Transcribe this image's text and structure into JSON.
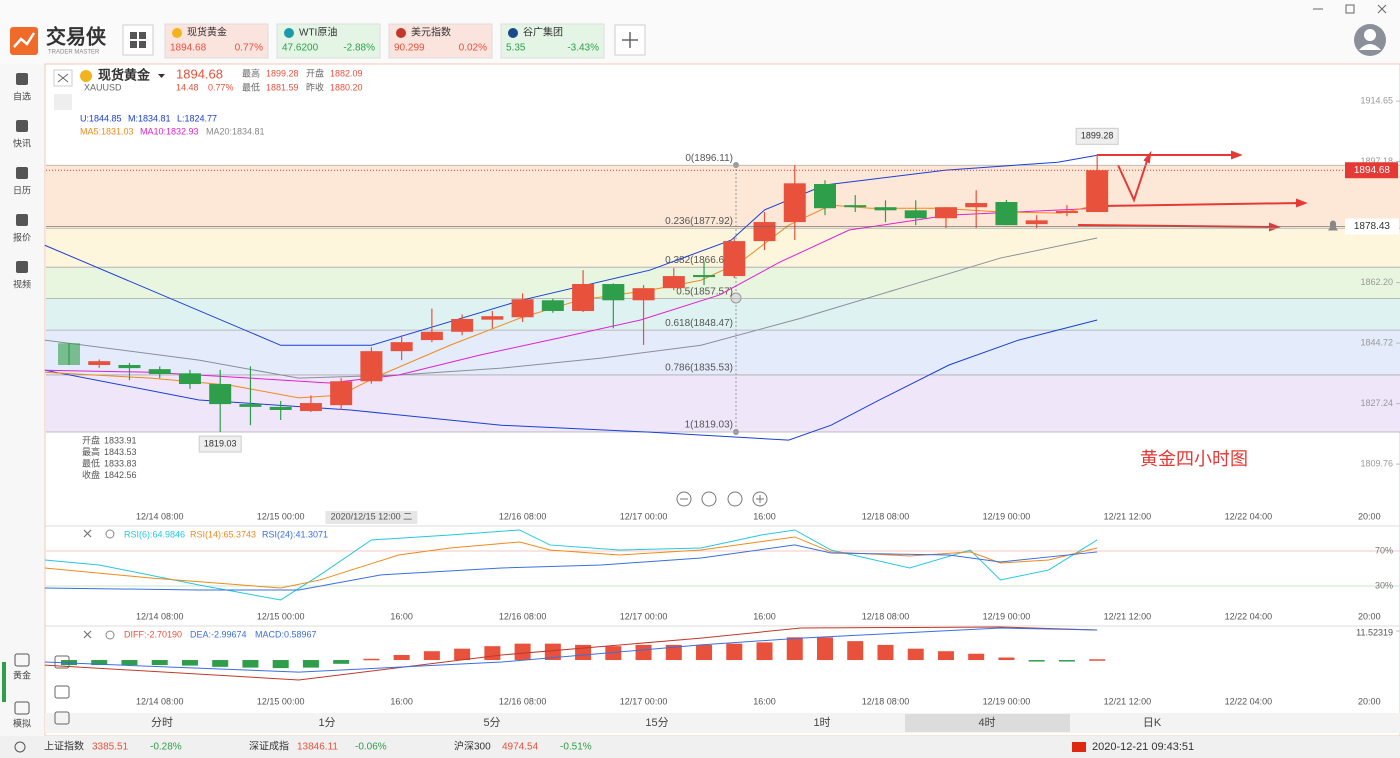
{
  "window": {
    "logo": "交易侠",
    "logo_sub": "TRADER MASTER"
  },
  "tabs": [
    {
      "name": "现货黄金",
      "price": "1894.68",
      "change": "0.77%",
      "color": "#e8513c",
      "bg": "#fbe3de"
    },
    {
      "name": "WTI原油",
      "price": "47.6200",
      "change": "-2.88%",
      "color": "#2e9e4a",
      "bg": "#e4f5e6"
    },
    {
      "name": "美元指数",
      "price": "90.299",
      "change": "0.02%",
      "color": "#e8513c",
      "bg": "#fbe3de"
    },
    {
      "name": "谷广集团",
      "price": "5.35",
      "change": "-3.43%",
      "color": "#2e9e4a",
      "bg": "#e4f5e6"
    }
  ],
  "sidebar": {
    "top": [
      "自选",
      "快讯",
      "日历",
      "报价",
      "视频"
    ],
    "bottom": [
      "黄金",
      "模拟"
    ]
  },
  "header": {
    "name": "现货黄金",
    "symbol": "XAUUSD",
    "price": "1894.68",
    "change": "14.48",
    "pct": "0.77%",
    "stats": [
      [
        "最高",
        "1899.28"
      ],
      [
        "开盘",
        "1882.09"
      ],
      [
        "最低",
        "1881.59"
      ],
      [
        "昨收",
        "1880.20"
      ]
    ]
  },
  "indicators": {
    "boll": [
      "U:1844.85",
      "M:1834.81",
      "L:1824.77"
    ],
    "boll_color": "#1a3fd6",
    "ma": [
      "MA5:1831.03",
      "MA10:1832.93",
      "MA20:1834.81"
    ],
    "ma_colors": [
      "#f08a1c",
      "#e020d0",
      "#888888"
    ]
  },
  "ohlc_info": [
    [
      "开盘",
      "1833.91"
    ],
    [
      "最高",
      "1843.53"
    ],
    [
      "最低",
      "1833.83"
    ],
    [
      "收盘",
      "1842.56"
    ]
  ],
  "chart": {
    "ylim": [
      1796.5,
      1924.8
    ],
    "yticks": [
      1914.65,
      1897.18,
      {
        "value": 1862.2,
        "label": "1862.20"
      },
      1844.72,
      1827.24,
      1809.76
    ],
    "last": 1894.68,
    "alert": 1878.43,
    "fib": [
      {
        "label": "0(1896.11)",
        "value": 1896.11,
        "band": "#fde8d7"
      },
      {
        "label": "0.236(1877.92)",
        "value": 1877.92,
        "band": "#fdf6dc"
      },
      {
        "label": "0.382(1866.67)",
        "value": 1866.67,
        "band": "#e8f5df"
      },
      {
        "label": "0.5(1857.57)",
        "value": 1857.57,
        "band": "#dff2f2"
      },
      {
        "label": "0.618(1848.47)",
        "value": 1848.47,
        "band": "#e4ebfa"
      },
      {
        "label": "0.786(1835.53)",
        "value": 1835.53,
        "band": "#efe6fa"
      },
      {
        "label": "1(1819.03)",
        "value": 1819.03
      }
    ],
    "up_color": "#e8513c",
    "down_color": "#2e9e4a",
    "candles": [
      [
        1844.7,
        1844.7,
        1838.4,
        1838.4
      ],
      [
        1838.4,
        1840,
        1837.6,
        1839.5
      ],
      [
        1838.4,
        1839,
        1834,
        1837.5
      ],
      [
        1837.2,
        1838,
        1834.6,
        1835.8
      ],
      [
        1836,
        1837,
        1831.5,
        1832.9
      ],
      [
        1832.9,
        1837,
        1819.03,
        1827.1
      ],
      [
        1827.1,
        1838,
        1821,
        1826.3
      ],
      [
        1826.3,
        1828,
        1822.5,
        1825.4
      ],
      [
        1825.1,
        1829.6,
        1824.8,
        1827.4
      ],
      [
        1826.8,
        1834.6,
        1825.4,
        1833.7
      ],
      [
        1833.7,
        1843.5,
        1833,
        1842.4
      ],
      [
        1842.4,
        1847,
        1839.8,
        1845
      ],
      [
        1845.6,
        1854.7,
        1845,
        1848
      ],
      [
        1848,
        1853,
        1847,
        1851.7
      ],
      [
        1851.5,
        1854,
        1849,
        1852.5
      ],
      [
        1852.2,
        1859.1,
        1850.8,
        1857.4
      ],
      [
        1857.1,
        1857.6,
        1853.5,
        1854
      ],
      [
        1854,
        1865.8,
        1853.7,
        1861.8
      ],
      [
        1861.8,
        1862,
        1849,
        1857.1
      ],
      [
        1857.1,
        1861.5,
        1844.2,
        1860.6
      ],
      [
        1860.6,
        1866.4,
        1860,
        1864.1
      ],
      [
        1864.4,
        1868.3,
        1861.5,
        1863.8
      ],
      [
        1864.1,
        1875,
        1863.5,
        1874.2
      ],
      [
        1874.2,
        1882.6,
        1871.6,
        1879.7
      ],
      [
        1879.7,
        1896.1,
        1874.5,
        1890.9
      ],
      [
        1890.7,
        1891.8,
        1881.7,
        1883.7
      ],
      [
        1884.6,
        1887.5,
        1882.6,
        1884
      ],
      [
        1884,
        1886,
        1879.7,
        1883.1
      ],
      [
        1883.1,
        1886,
        1878.8,
        1880.8
      ],
      [
        1880.8,
        1884,
        1878,
        1884
      ],
      [
        1884,
        1888.9,
        1878,
        1885.2
      ],
      [
        1885.5,
        1886.1,
        1878.8,
        1878.8
      ],
      [
        1879.1,
        1881.7,
        1878,
        1880.2
      ],
      [
        1882.3,
        1884.6,
        1881.4,
        1882.9
      ],
      [
        1882.6,
        1899.28,
        1882.6,
        1894.68
      ]
    ],
    "lines": [
      {
        "color": "#1a3fd6",
        "points": [
          [
            -0.8,
            1873.0
          ],
          [
            7,
            1844.1
          ],
          [
            10,
            1844.1
          ],
          [
            15,
            1857.2
          ],
          [
            19.2,
            1865.8
          ],
          [
            21.9,
            1874.5
          ],
          [
            23,
            1883.2
          ],
          [
            25,
            1890.4
          ],
          [
            29,
            1894.7
          ],
          [
            32.7,
            1897.0
          ],
          [
            34,
            1899.0
          ]
        ]
      },
      {
        "color": "#1a3fd6",
        "points": [
          [
            -0.8,
            1836.9
          ],
          [
            4.3,
            1828.3
          ],
          [
            9.3,
            1825.4
          ],
          [
            14.3,
            1821.0
          ],
          [
            19.2,
            1819.0
          ],
          [
            23.8,
            1816.7
          ],
          [
            25.2,
            1821.0
          ],
          [
            26.8,
            1828.3
          ],
          [
            29.1,
            1838.4
          ],
          [
            31.4,
            1845.6
          ],
          [
            34,
            1851.4
          ]
        ]
      },
      {
        "color": "#8a8f9a",
        "points": [
          [
            -0.8,
            1845.6
          ],
          [
            4.3,
            1839.8
          ],
          [
            7.6,
            1834.6
          ],
          [
            10.9,
            1835.5
          ],
          [
            14.3,
            1837.5
          ],
          [
            17.6,
            1840.4
          ],
          [
            20.9,
            1844.1
          ],
          [
            24.2,
            1851.9
          ],
          [
            27.5,
            1860.6
          ],
          [
            30.8,
            1869.3
          ],
          [
            34,
            1875.1
          ]
        ]
      },
      {
        "color": "#e020d0",
        "points": [
          [
            -0.8,
            1836.9
          ],
          [
            2.7,
            1836.3
          ],
          [
            6.0,
            1834.6
          ],
          [
            8.6,
            1833.2
          ],
          [
            10.9,
            1835.5
          ],
          [
            13.6,
            1841.3
          ],
          [
            16.2,
            1846.2
          ],
          [
            18.9,
            1851.4
          ],
          [
            21.5,
            1858.6
          ],
          [
            23.5,
            1868.1
          ],
          [
            25.8,
            1877.4
          ],
          [
            29.1,
            1881.7
          ],
          [
            34,
            1883.7
          ]
        ]
      },
      {
        "color": "#f08a1c",
        "points": [
          [
            -0.8,
            1836.3
          ],
          [
            2.7,
            1834.6
          ],
          [
            5.3,
            1832.6
          ],
          [
            7.6,
            1828.9
          ],
          [
            8.96,
            1829.7
          ],
          [
            10.3,
            1835.5
          ],
          [
            12.6,
            1844.1
          ],
          [
            14.9,
            1851.9
          ],
          [
            16.9,
            1857.2
          ],
          [
            19.2,
            1860.0
          ],
          [
            20.9,
            1862.9
          ],
          [
            22.2,
            1868.1
          ],
          [
            23.8,
            1878.8
          ],
          [
            25.2,
            1884.6
          ],
          [
            26.5,
            1883.7
          ],
          [
            28.8,
            1883.7
          ],
          [
            30.8,
            1882.6
          ],
          [
            32.8,
            1882.3
          ],
          [
            34,
            1884.6
          ]
        ]
      }
    ],
    "low_label": {
      "at": 5,
      "value": 1819.03
    },
    "high_label": {
      "at": 34,
      "value": 1899.28
    },
    "annotation": "黄金四小时图",
    "time_labels": [
      {
        "at": 3,
        "label": "12/14 08:00"
      },
      {
        "at": 7,
        "label": "12/15 00:00"
      },
      {
        "at": 10,
        "label": "2020/12/15 12:00 二",
        "highlight": true
      },
      {
        "at": 15,
        "label": "12/16 08:00"
      },
      {
        "at": 19,
        "label": "12/17 00:00"
      },
      {
        "at": 23,
        "label": "16:00"
      },
      {
        "at": 27,
        "label": "12/18 08:00"
      },
      {
        "at": 31,
        "label": "12/19 00:00"
      },
      {
        "at": 35,
        "label": "12/21 12:00"
      },
      {
        "at": 39,
        "label": "12/22 04:00"
      },
      {
        "at": 43,
        "label": "20:00"
      }
    ]
  },
  "sub_time_labels": [
    {
      "at": 3,
      "label": "12/14 08:00"
    },
    {
      "at": 7,
      "label": "12/15 00:00"
    },
    {
      "at": 11,
      "label": "16:00"
    },
    {
      "at": 15,
      "label": "12/16 08:00"
    },
    {
      "at": 19,
      "label": "12/17 00:00"
    },
    {
      "at": 23,
      "label": "16:00"
    },
    {
      "at": 27,
      "label": "12/18 08:00"
    },
    {
      "at": 31,
      "label": "12/19 00:00"
    },
    {
      "at": 35,
      "label": "12/21 12:00"
    },
    {
      "at": 39,
      "label": "12/22 04:00"
    },
    {
      "at": 43,
      "label": "20:00"
    }
  ],
  "rsi": {
    "ylim": [
      -14.6,
      97.4
    ],
    "yticks": [
      {
        "value": 70,
        "label": "70%"
      },
      {
        "value": 30,
        "label": "30%"
      }
    ],
    "series": [
      {
        "name": "RSI(6):64.9846",
        "color": "#22c8e0",
        "points": [
          [
            -0.8,
            59.7
          ],
          [
            1.0,
            54
          ],
          [
            4.3,
            31.1
          ],
          [
            7.0,
            14
          ],
          [
            8.3,
            42.6
          ],
          [
            10.0,
            82.6
          ],
          [
            12.6,
            88.3
          ],
          [
            14.9,
            94
          ],
          [
            15.9,
            76.9
          ],
          [
            18.2,
            71.1
          ],
          [
            20.9,
            73.4
          ],
          [
            22.9,
            88.3
          ],
          [
            24.0,
            94
          ],
          [
            25.2,
            71.1
          ],
          [
            27.8,
            50.6
          ],
          [
            29.8,
            71.1
          ],
          [
            30.8,
            36.9
          ],
          [
            32.4,
            48.3
          ],
          [
            34,
            82.6
          ]
        ]
      },
      {
        "name": "RSI(14):65.3743",
        "color": "#f08a1c",
        "points": [
          [
            -0.8,
            50.6
          ],
          [
            2.7,
            39.1
          ],
          [
            7.0,
            27.7
          ],
          [
            8.3,
            36.9
          ],
          [
            10.9,
            65.4
          ],
          [
            12.6,
            73.4
          ],
          [
            14.9,
            80.3
          ],
          [
            15.9,
            71.1
          ],
          [
            18.2,
            65.4
          ],
          [
            20.9,
            71.1
          ],
          [
            24.0,
            86
          ],
          [
            25.2,
            68.9
          ],
          [
            27.8,
            64.3
          ],
          [
            29.8,
            68.9
          ],
          [
            30.8,
            56.3
          ],
          [
            32.4,
            59.7
          ],
          [
            34,
            73.4
          ]
        ]
      },
      {
        "name": "RSI(24):41.3071",
        "color": "#3a6fe0",
        "points": [
          [
            -0.8,
            27.7
          ],
          [
            4.3,
            25.4
          ],
          [
            7.6,
            25.4
          ],
          [
            10.3,
            42.6
          ],
          [
            14.3,
            50.6
          ],
          [
            17.6,
            54
          ],
          [
            20.9,
            62
          ],
          [
            24.0,
            76.9
          ],
          [
            25.2,
            67.7
          ],
          [
            29.1,
            65.4
          ],
          [
            30.8,
            57.4
          ],
          [
            34,
            68.9
          ]
        ]
      }
    ]
  },
  "macd": {
    "ylim": [
      -21,
      13.1
    ],
    "yticks": [
      11.52319
    ],
    "labels": [
      {
        "name": "DIFF:-2.70190",
        "color": "#e8513c"
      },
      {
        "name": "DEA:-2.99674",
        "color": "#3a6fe0"
      },
      {
        "name": "MACD:0.58967",
        "color": "#3a6fe0"
      }
    ],
    "bars": [
      -2,
      -2,
      -2,
      -2,
      -2.2,
      -2.7,
      -3,
      -3.2,
      -3,
      -1.5,
      0.5,
      2,
      3.5,
      4.5,
      5.5,
      6.5,
      6.5,
      6,
      5.5,
      6,
      6,
      6,
      6.5,
      7,
      9,
      9,
      7.5,
      6,
      4.5,
      3.5,
      2.5,
      1,
      -0.3,
      -0.5,
      0.3
    ],
    "lines": [
      {
        "color": "#c0392b",
        "points": [
          [
            -0.8,
            -2
          ],
          [
            7.6,
            -7.9
          ],
          [
            14.3,
            2
          ],
          [
            20.9,
            8.7
          ],
          [
            24.2,
            12.7
          ],
          [
            30.8,
            13.1
          ],
          [
            34,
            11.9
          ]
        ]
      },
      {
        "color": "#3a6fe0",
        "points": [
          [
            -0.8,
            -0.8
          ],
          [
            7.6,
            -4.8
          ],
          [
            14.3,
            -0.8
          ],
          [
            20.9,
            6
          ],
          [
            24.2,
            8.7
          ],
          [
            30.8,
            12.7
          ],
          [
            34,
            11.9
          ]
        ]
      }
    ]
  },
  "periods": {
    "items": [
      "分时",
      "1分",
      "5分",
      "15分",
      "1时",
      "4时",
      "日K"
    ],
    "selected": 5
  },
  "status": {
    "indices": [
      [
        "上证指数",
        "3385.51",
        "-0.28%"
      ],
      [
        "深证成指",
        "13846.11",
        "-0.06%"
      ],
      [
        "沪深300",
        "4974.54",
        "-0.51%"
      ]
    ],
    "time": "2020-12-21 09:43:51"
  }
}
